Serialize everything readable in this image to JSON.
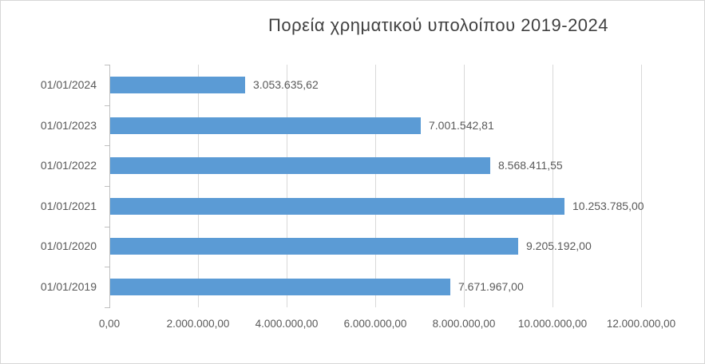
{
  "chart_data": {
    "type": "bar",
    "orientation": "horizontal",
    "title": "Πορεία χρηματικού υπολοίπου 2019-2024",
    "categories": [
      "01/01/2024",
      "01/01/2023",
      "01/01/2022",
      "01/01/2021",
      "01/01/2020",
      "01/01/2019"
    ],
    "values": [
      3053635.62,
      7001542.81,
      8568411.55,
      10253785.0,
      9205192.0,
      7671967.0
    ],
    "data_labels": [
      "3.053.635,62",
      "7.001.542,81",
      "8.568.411,55",
      "10.253.785,00",
      "9.205.192,00",
      "7.671.967,00"
    ],
    "x_ticks": [
      0,
      2000000,
      4000000,
      6000000,
      8000000,
      10000000,
      12000000
    ],
    "x_tick_labels": [
      "0,00",
      "2.000.000,00",
      "4.000.000,00",
      "6.000.000,00",
      "8.000.000,00",
      "10.000.000,00",
      "12.000.000,00"
    ],
    "xlim": [
      0,
      12000000
    ],
    "grid": true,
    "legend": false,
    "colors": {
      "bar": "#5B9BD5",
      "gridline": "#D9D9D9",
      "axis": "#BFBFBF",
      "tick_text": "#595959",
      "label_text": "#595959",
      "title_text": "#404040"
    }
  }
}
